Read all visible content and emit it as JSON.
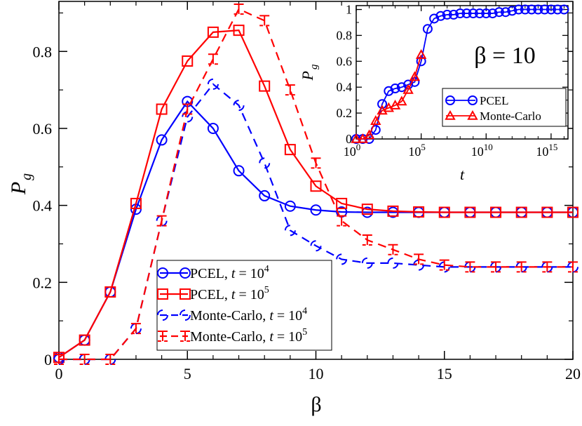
{
  "chart_data": [
    {
      "type": "line",
      "xlabel": "β",
      "ylabel": "P",
      "ylabel_sub": "g",
      "xlim": [
        0,
        20
      ],
      "ylim": [
        0,
        0.93
      ],
      "xticks": [
        0,
        5,
        10,
        15,
        20
      ],
      "xtick_labels": [
        "0",
        "5",
        "10",
        "15",
        "20"
      ],
      "yticks": [
        0,
        0.2,
        0.4,
        0.6,
        0.8
      ],
      "ytick_labels": [
        "0",
        "0.2",
        "0.4",
        "0.6",
        "0.8"
      ],
      "grid": false,
      "legend_placement": "bottom-center",
      "series": [
        {
          "name": "PCEL, t = 10^4",
          "legend_text": "PCEL, ",
          "legend_t": "t",
          "legend_eq": " = 10",
          "legend_exp": "4",
          "color": "#0000ff",
          "line": "solid",
          "marker": "circle",
          "x": [
            0,
            1,
            2,
            3,
            4,
            5,
            6,
            7,
            8,
            9,
            10,
            11,
            12,
            13,
            14,
            15,
            16,
            17,
            18,
            19,
            20
          ],
          "y": [
            0.005,
            0.05,
            0.175,
            0.39,
            0.57,
            0.67,
            0.6,
            0.49,
            0.425,
            0.398,
            0.388,
            0.383,
            0.382,
            0.382,
            0.382,
            0.382,
            0.382,
            0.382,
            0.382,
            0.382,
            0.382
          ]
        },
        {
          "name": "PCEL, t = 10^5",
          "legend_text": "PCEL, ",
          "legend_t": "t",
          "legend_eq": " = 10",
          "legend_exp": "5",
          "color": "#ff0000",
          "line": "solid",
          "marker": "square",
          "x": [
            0,
            1,
            2,
            3,
            4,
            5,
            6,
            7,
            8,
            9,
            10,
            11,
            12,
            13,
            14,
            15,
            16,
            17,
            18,
            19,
            20
          ],
          "y": [
            0.005,
            0.05,
            0.175,
            0.405,
            0.65,
            0.775,
            0.85,
            0.855,
            0.71,
            0.545,
            0.45,
            0.405,
            0.39,
            0.385,
            0.383,
            0.382,
            0.382,
            0.382,
            0.382,
            0.382,
            0.382
          ]
        },
        {
          "name": "Monte-Carlo, t = 10^4",
          "legend_text": "Monte-Carlo, ",
          "legend_t": "t",
          "legend_eq": " = 10",
          "legend_exp": "4",
          "color": "#0000ff",
          "line": "dashed",
          "marker": "dash",
          "x": [
            0,
            1,
            2,
            3,
            4,
            5,
            6,
            7,
            8,
            9,
            10,
            11,
            12,
            13,
            14,
            15,
            16,
            17,
            18,
            19,
            20
          ],
          "y": [
            0.0,
            0.0,
            0.0,
            0.08,
            0.36,
            0.63,
            0.715,
            0.66,
            0.51,
            0.335,
            0.295,
            0.26,
            0.25,
            0.25,
            0.245,
            0.24,
            0.24,
            0.24,
            0.24,
            0.24,
            0.24
          ]
        },
        {
          "name": "Monte-Carlo, t = 10^5",
          "legend_text": "Monte-Carlo, ",
          "legend_t": "t",
          "legend_eq": " = 10",
          "legend_exp": "5",
          "color": "#ff0000",
          "line": "dashed",
          "marker": "plus",
          "x": [
            0,
            1,
            2,
            3,
            4,
            5,
            6,
            7,
            8,
            9,
            10,
            11,
            12,
            13,
            14,
            15,
            16,
            17,
            18,
            19,
            20
          ],
          "y": [
            0.0,
            0.0,
            0.0,
            0.08,
            0.36,
            0.65,
            0.78,
            0.91,
            0.88,
            0.7,
            0.51,
            0.36,
            0.31,
            0.285,
            0.26,
            0.245,
            0.24,
            0.24,
            0.24,
            0.24,
            0.24
          ]
        }
      ]
    },
    {
      "type": "line",
      "xlabel": "t",
      "ylabel": "P",
      "ylabel_sub": "g",
      "xscale": "log",
      "xlim_log10": [
        0,
        16.3
      ],
      "ylim": [
        0,
        1.03
      ],
      "xticks_log10": [
        0,
        5,
        10,
        15
      ],
      "xtick_labels": [
        {
          "base": "10",
          "exp": "0"
        },
        {
          "base": "10",
          "exp": "5"
        },
        {
          "base": "10",
          "exp": "10"
        },
        {
          "base": "10",
          "exp": "15"
        }
      ],
      "yticks": [
        0,
        0.2,
        0.4,
        0.6,
        0.8,
        1
      ],
      "ytick_labels": [
        "0",
        "0.2",
        "0.4",
        "0.6",
        "0.8",
        "1"
      ],
      "grid": false,
      "legend_placement": "right",
      "annotation": "β = 10",
      "series": [
        {
          "name": "PCEL",
          "color": "#0000ff",
          "line": "solid",
          "marker": "circle",
          "log10_x": [
            0,
            0.5,
            1,
            1.5,
            2,
            2.5,
            3,
            3.5,
            4,
            4.5,
            5,
            5.5,
            6,
            6.5,
            7,
            7.5,
            8,
            8.5,
            9,
            9.5,
            10,
            10.5,
            11,
            11.5,
            12,
            12.5,
            13,
            13.5,
            14,
            14.5,
            15,
            15.5,
            16
          ],
          "y": [
            0.0,
            0.0,
            0.0,
            0.07,
            0.27,
            0.37,
            0.39,
            0.4,
            0.42,
            0.44,
            0.6,
            0.85,
            0.93,
            0.95,
            0.96,
            0.96,
            0.97,
            0.97,
            0.97,
            0.97,
            0.97,
            0.97,
            0.98,
            0.98,
            0.99,
            1.0,
            1.0,
            1.0,
            1.0,
            1.0,
            1.0,
            1.0,
            1.0
          ]
        },
        {
          "name": "Monte-Carlo",
          "color": "#ff0000",
          "line": "solid",
          "marker": "triangle",
          "log10_x": [
            0,
            0.5,
            1,
            1.5,
            2,
            2.5,
            3,
            3.5,
            4,
            4.5,
            5
          ],
          "y": [
            0.0,
            0.0,
            0.03,
            0.14,
            0.22,
            0.24,
            0.26,
            0.29,
            0.38,
            0.48,
            0.65
          ]
        }
      ]
    }
  ]
}
